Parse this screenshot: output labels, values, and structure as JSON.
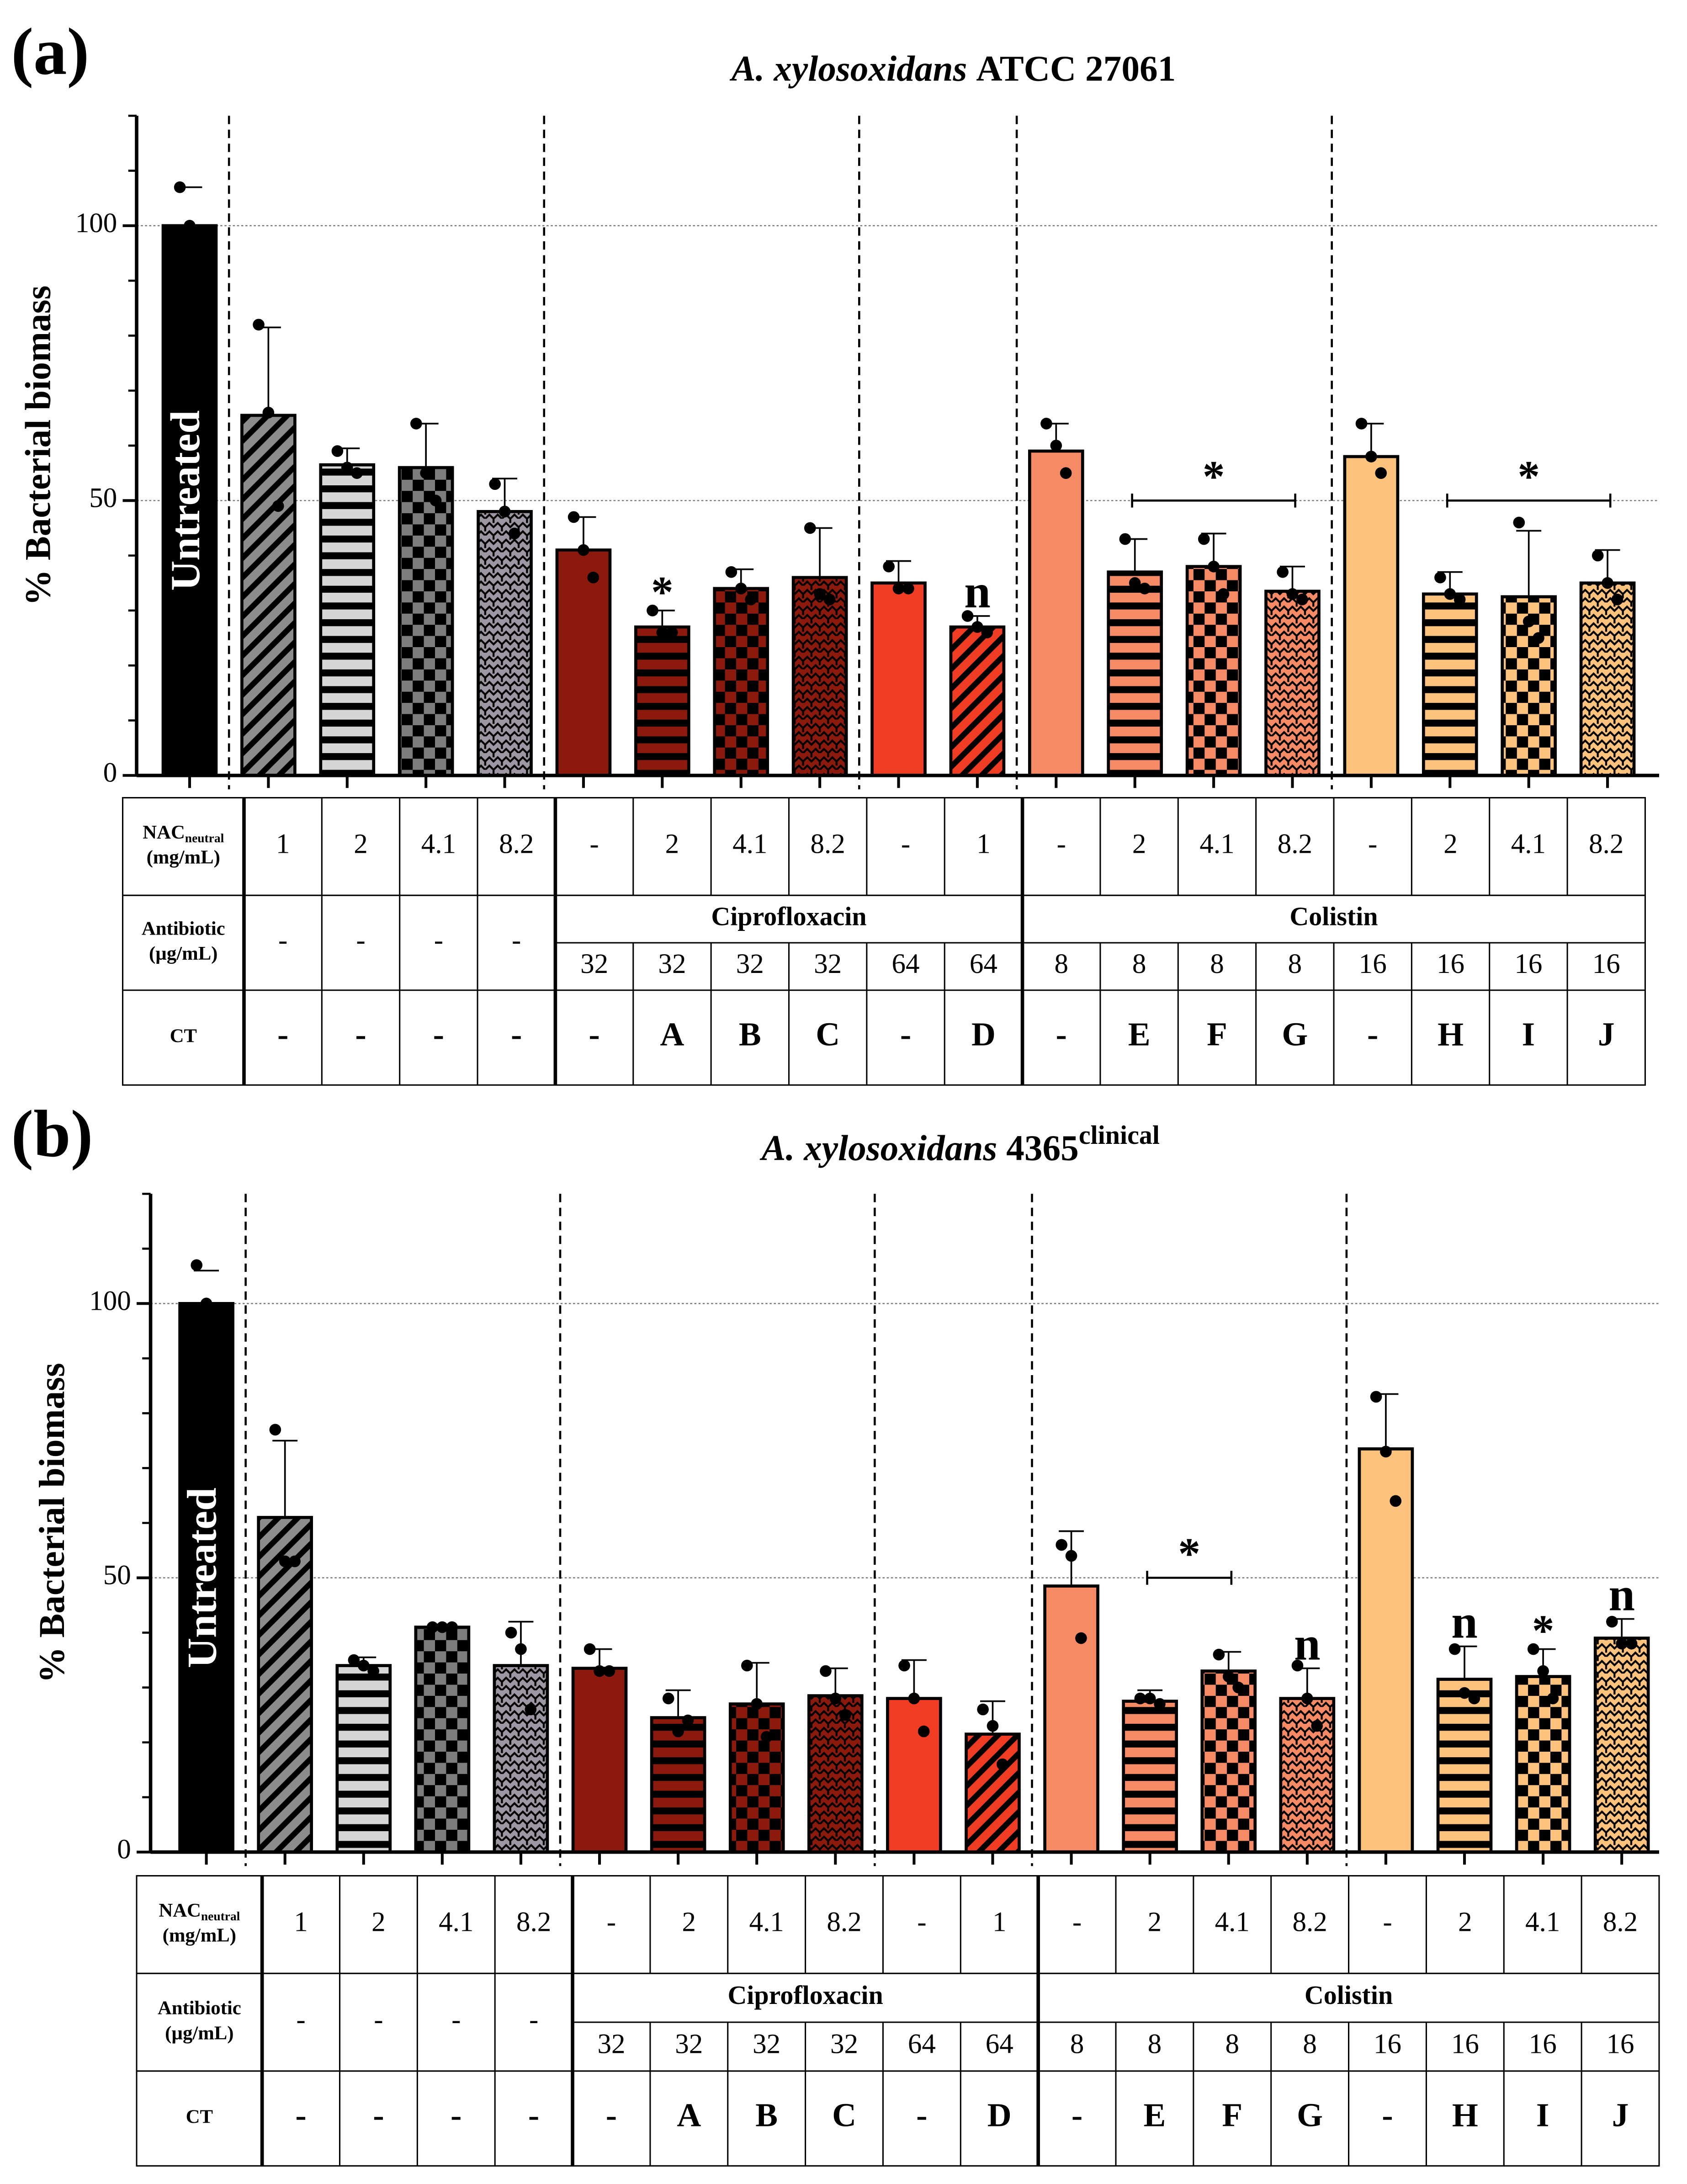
{
  "chart_data": [
    {
      "type": "bar",
      "panel": "(a)",
      "species": "A. xylosoxidans",
      "strain": "ATCC 27061",
      "ylabel": "% Bacterial biomass",
      "ylim": [
        0,
        120
      ],
      "yticks": [
        0,
        50,
        100
      ],
      "yminor": [
        10,
        20,
        30,
        40,
        60,
        70,
        80,
        90,
        110,
        120
      ],
      "grid": true,
      "categories": [
        "Untreated",
        null,
        null,
        null,
        null,
        null,
        null,
        null,
        null,
        null,
        null,
        null,
        null,
        null,
        null,
        null,
        null,
        null,
        null
      ],
      "values": [
        100,
        65.5,
        56.5,
        56,
        48,
        41,
        27,
        34,
        36,
        35,
        27,
        59,
        37,
        38,
        33.5,
        58,
        33,
        32.5,
        35
      ],
      "errors": [
        7,
        16,
        3,
        8,
        6,
        6,
        3,
        3.5,
        9,
        4,
        2,
        5,
        6,
        6,
        4.5,
        6,
        4,
        12,
        6
      ],
      "points": [
        [
          107,
          100,
          93
        ],
        [
          82,
          66,
          49
        ],
        [
          59,
          56,
          55
        ],
        [
          64,
          55,
          50
        ],
        [
          53,
          48,
          44
        ],
        [
          47,
          41,
          36
        ],
        [
          30,
          26,
          26
        ],
        [
          37,
          34,
          32
        ],
        [
          45,
          33,
          32
        ],
        [
          38,
          34,
          34
        ],
        [
          29,
          27,
          26
        ],
        [
          64,
          60,
          55
        ],
        [
          43,
          35,
          34
        ],
        [
          43,
          38,
          33
        ],
        [
          37,
          33,
          32
        ],
        [
          64,
          58,
          55
        ],
        [
          36,
          33,
          32
        ],
        [
          46,
          28,
          25
        ],
        [
          40,
          35,
          32
        ]
      ],
      "colors": [
        "#000000",
        "#8c8c8c",
        "#d6d6d6",
        "#7d7d7d",
        "#9d97a3",
        "#8b1a0c",
        "#8b1a0c",
        "#8b1a0c",
        "#8b1a0c",
        "#f03c22",
        "#f03c22",
        "#f68a64",
        "#f68a64",
        "#f68a64",
        "#f68a64",
        "#fdc27c",
        "#fdc27c",
        "#fdc27c",
        "#fdc27c"
      ],
      "patterns": [
        "solid",
        "diagonal",
        "horizontal",
        "checker",
        "weave",
        "solid",
        "horizontal",
        "checker",
        "weave",
        "solid",
        "diagonal",
        "solid",
        "horizontal",
        "checker",
        "weave",
        "solid",
        "horizontal",
        "checker",
        "weave"
      ],
      "markers": [
        null,
        null,
        null,
        null,
        null,
        null,
        "*",
        null,
        null,
        null,
        "n",
        null,
        null,
        null,
        null,
        null,
        null,
        null,
        null
      ],
      "brackets": [
        {
          "from": 12,
          "to": 14,
          "y": 50,
          "text": "*"
        },
        {
          "from": 16,
          "to": 18,
          "y": 50,
          "text": "*"
        }
      ],
      "table": {
        "nac": {
          "label": [
            "NAC",
            "neutral",
            "(mg/mL)"
          ],
          "cells": [
            "1",
            "2",
            "4.1",
            "8.2",
            "-",
            "2",
            "4.1",
            "8.2",
            "-",
            "1",
            "-",
            "2",
            "4.1",
            "8.2",
            "-",
            "2",
            "4.1",
            "8.2"
          ]
        },
        "antibiotic": {
          "label": [
            "Antibiotic",
            "(µg/mL)"
          ],
          "none": [
            "-",
            "-",
            "-",
            "-"
          ],
          "groups": [
            {
              "name": "Ciprofloxacin",
              "doses": [
                "32",
                "32",
                "32",
                "32",
                "64",
                "64"
              ]
            },
            {
              "name": "Colistin",
              "doses": [
                "8",
                "8",
                "8",
                "8",
                "16",
                "16",
                "16",
                "16"
              ]
            }
          ]
        },
        "ct": {
          "label": "CT",
          "cells": [
            "-",
            "-",
            "-",
            "-",
            "-",
            "A",
            "B",
            "C",
            "-",
            "D",
            "-",
            "E",
            "F",
            "G",
            "-",
            "H",
            "I",
            "J"
          ]
        }
      }
    },
    {
      "type": "bar",
      "panel": "(b)",
      "species": "A. xylosoxidans",
      "strain": "4365",
      "strain_sup": "clinical",
      "ylabel": "% Bacterial biomass",
      "ylim": [
        0,
        120
      ],
      "yticks": [
        0,
        50,
        100
      ],
      "yminor": [
        10,
        20,
        30,
        40,
        60,
        70,
        80,
        90,
        110,
        120
      ],
      "grid": true,
      "categories": [
        "Untreated",
        null,
        null,
        null,
        null,
        null,
        null,
        null,
        null,
        null,
        null,
        null,
        null,
        null,
        null,
        null,
        null,
        null,
        null
      ],
      "values": [
        100,
        61,
        34,
        41,
        34,
        33.5,
        24.5,
        27,
        28.5,
        28,
        21.5,
        48.5,
        27.5,
        33,
        28,
        73.5,
        31.5,
        32,
        39
      ],
      "errors": [
        6,
        14,
        1.5,
        0.5,
        8,
        3.5,
        5,
        7.5,
        5,
        7,
        6,
        10,
        2,
        3.5,
        5.5,
        10,
        6,
        5,
        3.5
      ],
      "points": [
        [
          107,
          100,
          93
        ],
        [
          77,
          53,
          53
        ],
        [
          35,
          34,
          33
        ],
        [
          41,
          41,
          41
        ],
        [
          40,
          37,
          26
        ],
        [
          37,
          33,
          33
        ],
        [
          28,
          22,
          24
        ],
        [
          34,
          27,
          21
        ],
        [
          33,
          28,
          25
        ],
        [
          34,
          28,
          22
        ],
        [
          26,
          23,
          16
        ],
        [
          56,
          54,
          39
        ],
        [
          28,
          28,
          27
        ],
        [
          36,
          32,
          30
        ],
        [
          34,
          28,
          23
        ],
        [
          83,
          73,
          64
        ],
        [
          37,
          29,
          28
        ],
        [
          37,
          33,
          28
        ],
        [
          42,
          38,
          38
        ]
      ],
      "colors": [
        "#000000",
        "#8c8c8c",
        "#d6d6d6",
        "#7d7d7d",
        "#9d97a3",
        "#8b1a0c",
        "#8b1a0c",
        "#8b1a0c",
        "#8b1a0c",
        "#f03c22",
        "#f03c22",
        "#f68a64",
        "#f68a64",
        "#f68a64",
        "#f68a64",
        "#fdc27c",
        "#fdc27c",
        "#fdc27c",
        "#fdc27c"
      ],
      "patterns": [
        "solid",
        "diagonal",
        "horizontal",
        "checker",
        "weave",
        "solid",
        "horizontal",
        "checker",
        "weave",
        "solid",
        "diagonal",
        "solid",
        "horizontal",
        "checker",
        "weave",
        "solid",
        "horizontal",
        "checker",
        "weave"
      ],
      "markers": [
        null,
        null,
        null,
        null,
        null,
        null,
        null,
        null,
        null,
        null,
        null,
        null,
        null,
        null,
        "n",
        null,
        "n",
        "*",
        "n"
      ],
      "brackets": [
        {
          "from": 12,
          "to": 13,
          "y": 50,
          "text": "*"
        }
      ],
      "table": {
        "nac": {
          "label": [
            "NAC",
            "neutral",
            "(mg/mL)"
          ],
          "cells": [
            "1",
            "2",
            "4.1",
            "8.2",
            "-",
            "2",
            "4.1",
            "8.2",
            "-",
            "1",
            "-",
            "2",
            "4.1",
            "8.2",
            "-",
            "2",
            "4.1",
            "8.2"
          ]
        },
        "antibiotic": {
          "label": [
            "Antibiotic",
            "(µg/mL)"
          ],
          "none": [
            "-",
            "-",
            "-",
            "-"
          ],
          "groups": [
            {
              "name": "Ciprofloxacin",
              "doses": [
                "32",
                "32",
                "32",
                "32",
                "64",
                "64"
              ]
            },
            {
              "name": "Colistin",
              "doses": [
                "8",
                "8",
                "8",
                "8",
                "16",
                "16",
                "16",
                "16"
              ]
            }
          ]
        },
        "ct": {
          "label": "CT",
          "cells": [
            "-",
            "-",
            "-",
            "-",
            "-",
            "A",
            "B",
            "C",
            "-",
            "D",
            "-",
            "E",
            "F",
            "G",
            "-",
            "H",
            "I",
            "J"
          ]
        }
      }
    }
  ]
}
